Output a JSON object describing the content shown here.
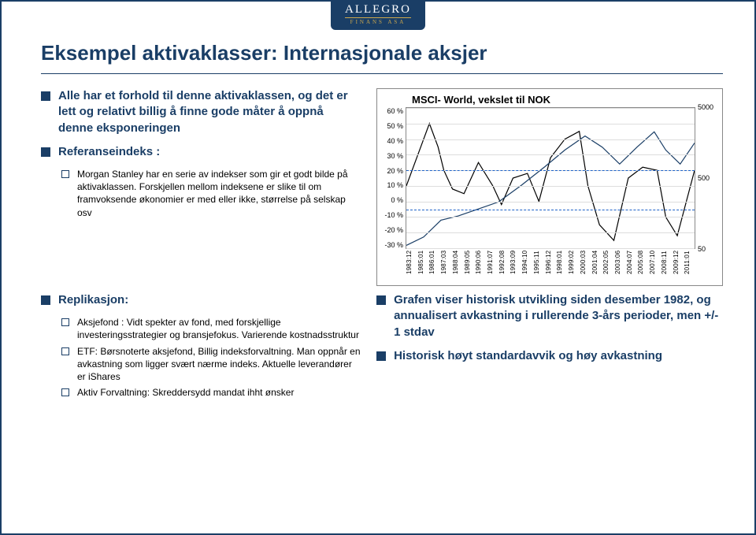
{
  "brand": {
    "name": "ALLEGRO",
    "sub": "FINANS ASA"
  },
  "title": "Eksempel aktivaklasser: Internasjonale aksjer",
  "left_bullets": {
    "b1": "Alle har et forhold til denne aktivaklassen, og det er lett og relativt billig å finne gode måter å oppnå denne eksponeringen",
    "b2": "Referanseindeks :",
    "b2_sub1": "Morgan Stanley har en serie av indekser som gir et godt bilde på aktivaklassen. Forskjellen mellom indeksene er slike til om framvoksende økonomier er med eller ikke, størrelse på selskap osv"
  },
  "replikasjon": {
    "heading": "Replikasjon:",
    "s1": "Aksjefond : Vidt spekter av fond, med forskjellige investeringsstrategier og bransjefokus. Varierende kostnadsstruktur",
    "s2": "ETF: Børsnoterte aksjefond, Billig indeksforvaltning. Man oppnår en avkastning som ligger svært nærme indeks. Aktuelle leverandører er iShares",
    "s3": "Aktiv Forvaltning:  Skreddersydd mandat ihht ønsker"
  },
  "right_bullets": {
    "r1": "Grafen viser historisk utvikling siden desember 1982, og annualisert avkastning i rullerende 3-års perioder, men +/- 1 stdav",
    "r2": "Historisk høyt standardavvik og høy avkastning"
  },
  "chart": {
    "title": "MSCI- World, vekslet til NOK",
    "yleft_min": -30,
    "yleft_max": 60,
    "yleft_step": 10,
    "yleft_suffix": " %",
    "yright_min": 50,
    "yright_max": 5000,
    "yright_ticks": [
      5000,
      500,
      50
    ],
    "scale_right": "log",
    "background_color": "#ffffff",
    "grid_color": "#dddddd",
    "border_color": "#888888",
    "band_color": "#1e62c8",
    "band_dash": "4,3",
    "line_width_main": 1.2,
    "line_width_index": 1.2,
    "colors": {
      "main_line": "#000000",
      "index_line": "#1a3e66"
    },
    "band_yvalues": [
      20,
      -5
    ],
    "x_labels": [
      "1983:12",
      "1985:01",
      "1986:01",
      "1987:03",
      "1988:04",
      "1989:05",
      "1990:06",
      "1991:07",
      "1992:08",
      "1993:09",
      "1994:10",
      "1995:11",
      "1996:12",
      "1998:01",
      "1999:02",
      "2000:03",
      "2001:04",
      "2002:05",
      "2003:06",
      "2004:07",
      "2005:08",
      "2007:10",
      "2008:11",
      "2009:12",
      "2011:01"
    ],
    "series_main_pct": [
      [
        0,
        10
      ],
      [
        4,
        30
      ],
      [
        8,
        50
      ],
      [
        11,
        35
      ],
      [
        13,
        20
      ],
      [
        16,
        8
      ],
      [
        20,
        5
      ],
      [
        25,
        25
      ],
      [
        30,
        10
      ],
      [
        33,
        -2
      ],
      [
        37,
        15
      ],
      [
        42,
        18
      ],
      [
        46,
        0
      ],
      [
        50,
        28
      ],
      [
        55,
        40
      ],
      [
        60,
        45
      ],
      [
        63,
        10
      ],
      [
        67,
        -15
      ],
      [
        72,
        -25
      ],
      [
        77,
        15
      ],
      [
        82,
        22
      ],
      [
        87,
        20
      ],
      [
        90,
        -10
      ],
      [
        94,
        -22
      ],
      [
        100,
        20
      ]
    ],
    "series_index_log": [
      [
        0,
        0.02
      ],
      [
        6,
        0.08
      ],
      [
        12,
        0.2
      ],
      [
        18,
        0.23
      ],
      [
        25,
        0.28
      ],
      [
        32,
        0.33
      ],
      [
        40,
        0.45
      ],
      [
        48,
        0.58
      ],
      [
        55,
        0.7
      ],
      [
        62,
        0.8
      ],
      [
        68,
        0.72
      ],
      [
        74,
        0.6
      ],
      [
        80,
        0.72
      ],
      [
        86,
        0.83
      ],
      [
        90,
        0.7
      ],
      [
        95,
        0.6
      ],
      [
        100,
        0.75
      ]
    ]
  }
}
